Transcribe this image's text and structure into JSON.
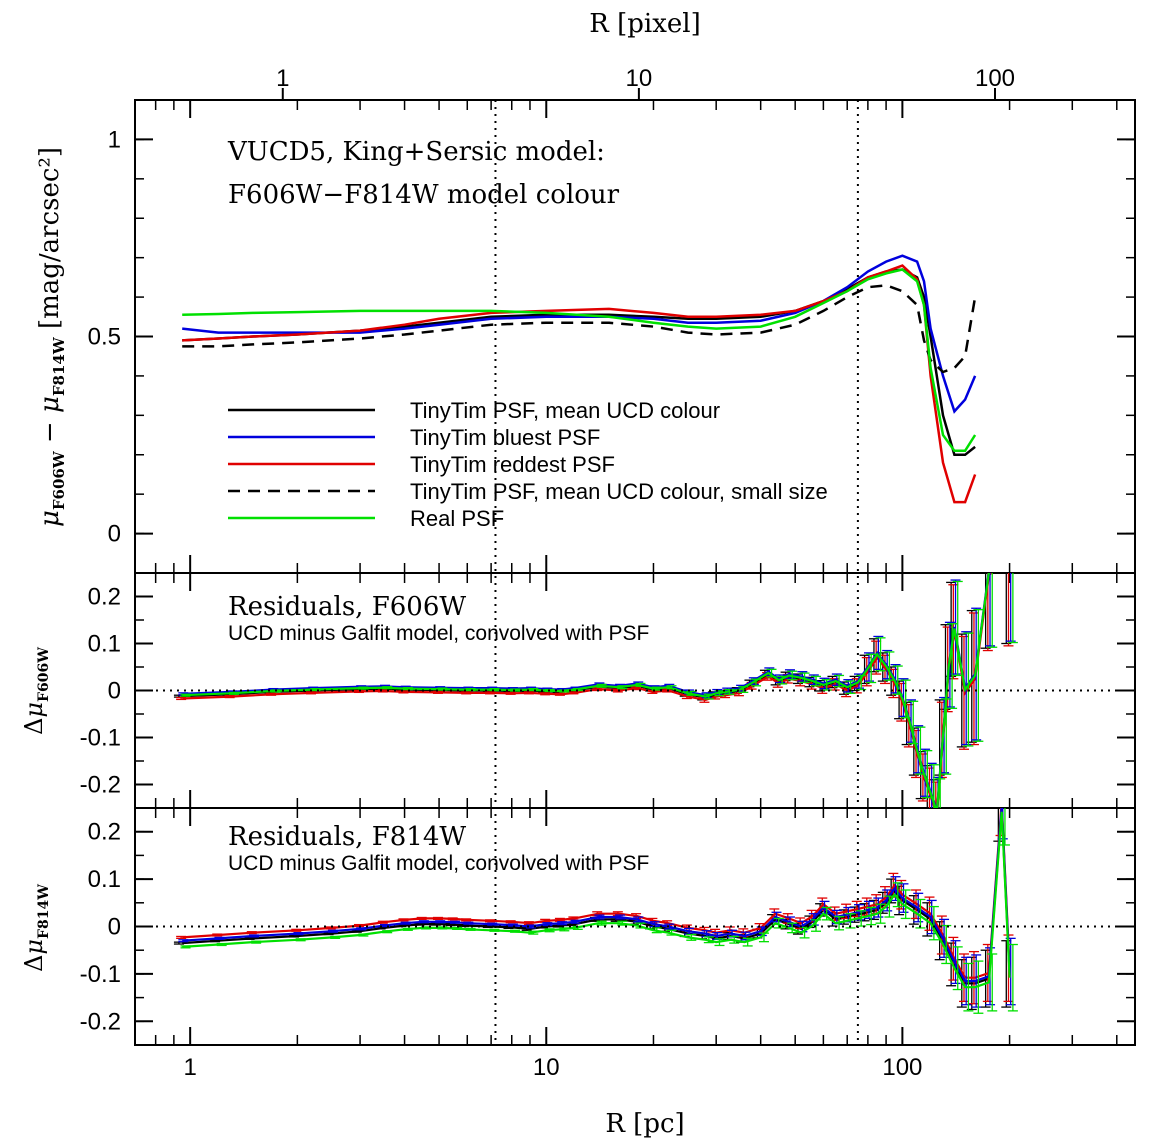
{
  "chart_data": {
    "type": "line",
    "x_scale": "log",
    "x_range": [
      0.7,
      450
    ],
    "top_axis": {
      "label": "R [pixel]",
      "tick_labels": [
        "1",
        "10",
        "100"
      ],
      "tick_values_pc": [
        1.82,
        18.2,
        182
      ]
    },
    "bottom_axis": {
      "label": "R [pc]",
      "tick_labels": [
        "1",
        "10",
        "100"
      ],
      "tick_values": [
        1,
        10,
        100
      ]
    },
    "vertical_dotted_lines": [
      7.2,
      75
    ],
    "panels": [
      {
        "id": "colour",
        "title_lines": [
          "VUCD5, King+Sersic model:",
          "F606W−F814W model colour"
        ],
        "ylabel": "μF606W − μF814W [mag/arcsec²]",
        "ylim": [
          -0.1,
          1.1
        ],
        "y_ticks": [
          0,
          0.5,
          1
        ],
        "y_tick_labels": [
          "0",
          "0.5",
          "1"
        ],
        "legend": [
          "TinyTim PSF, mean UCD colour",
          "TinyTim bluest PSF",
          "TinyTim reddest PSF",
          "TinyTim PSF, mean UCD colour, small size",
          "Real PSF"
        ],
        "series": [
          {
            "name": "TinyTim PSF, mean UCD colour",
            "color": "#000000",
            "dash": "",
            "x": [
              0.95,
              1.2,
              1.5,
              2,
              3,
              4,
              5,
              7,
              10,
              15,
              20,
              25,
              30,
              40,
              50,
              60,
              70,
              80,
              90,
              100,
              110,
              115,
              120,
              130,
              140,
              150,
              160
            ],
            "y": [
              0.49,
              0.495,
              0.5,
              0.505,
              0.515,
              0.525,
              0.535,
              0.55,
              0.555,
              0.555,
              0.55,
              0.545,
              0.545,
              0.55,
              0.565,
              0.59,
              0.62,
              0.65,
              0.665,
              0.67,
              0.65,
              0.6,
              0.5,
              0.3,
              0.2,
              0.2,
              0.22
            ]
          },
          {
            "name": "TinyTim bluest PSF",
            "color": "#0000dd",
            "dash": "",
            "x": [
              0.95,
              1.2,
              1.5,
              2,
              3,
              4,
              5,
              7,
              10,
              15,
              20,
              25,
              30,
              40,
              50,
              60,
              70,
              80,
              90,
              100,
              110,
              115,
              120,
              130,
              140,
              150,
              160
            ],
            "y": [
              0.52,
              0.51,
              0.51,
              0.51,
              0.51,
              0.52,
              0.53,
              0.545,
              0.55,
              0.55,
              0.545,
              0.535,
              0.535,
              0.54,
              0.56,
              0.59,
              0.625,
              0.665,
              0.69,
              0.705,
              0.69,
              0.64,
              0.52,
              0.4,
              0.31,
              0.34,
              0.4
            ]
          },
          {
            "name": "TinyTim reddest PSF",
            "color": "#e00000",
            "dash": "",
            "x": [
              0.95,
              1.2,
              1.5,
              2,
              3,
              4,
              5,
              7,
              10,
              15,
              20,
              25,
              30,
              40,
              50,
              60,
              70,
              80,
              90,
              100,
              110,
              115,
              120,
              130,
              140,
              150,
              160
            ],
            "y": [
              0.49,
              0.495,
              0.5,
              0.505,
              0.515,
              0.53,
              0.545,
              0.56,
              0.565,
              0.57,
              0.56,
              0.55,
              0.55,
              0.555,
              0.565,
              0.59,
              0.615,
              0.65,
              0.665,
              0.68,
              0.645,
              0.58,
              0.4,
              0.18,
              0.08,
              0.08,
              0.15
            ]
          },
          {
            "name": "TinyTim PSF, mean UCD colour, small size",
            "color": "#000000",
            "dash": "12,8",
            "x": [
              0.95,
              1.2,
              1.5,
              2,
              3,
              4,
              5,
              7,
              10,
              15,
              20,
              25,
              30,
              40,
              50,
              60,
              70,
              80,
              90,
              100,
              110,
              115,
              120,
              130,
              140,
              150,
              160
            ],
            "y": [
              0.475,
              0.475,
              0.48,
              0.485,
              0.495,
              0.505,
              0.515,
              0.53,
              0.535,
              0.535,
              0.525,
              0.51,
              0.505,
              0.51,
              0.53,
              0.565,
              0.6,
              0.625,
              0.63,
              0.615,
              0.58,
              0.49,
              0.44,
              0.41,
              0.42,
              0.45,
              0.6
            ]
          },
          {
            "name": "Real PSF",
            "color": "#00e000",
            "dash": "",
            "x": [
              0.95,
              1.2,
              1.5,
              2,
              3,
              4,
              5,
              7,
              10,
              15,
              20,
              25,
              30,
              40,
              50,
              60,
              70,
              80,
              90,
              100,
              110,
              115,
              120,
              130,
              140,
              150,
              160
            ],
            "y": [
              0.555,
              0.557,
              0.56,
              0.562,
              0.565,
              0.565,
              0.565,
              0.565,
              0.56,
              0.55,
              0.535,
              0.525,
              0.52,
              0.525,
              0.55,
              0.585,
              0.615,
              0.645,
              0.66,
              0.67,
              0.64,
              0.58,
              0.42,
              0.25,
              0.21,
              0.21,
              0.25
            ]
          }
        ]
      },
      {
        "id": "res606",
        "title": "Residuals, F606W",
        "subtitle": "UCD minus Galfit model, convolved with PSF",
        "ylabel": "ΔμF606W",
        "ylim": [
          -0.25,
          0.25
        ],
        "y_ticks": [
          -0.2,
          -0.1,
          0,
          0.1,
          0.2
        ],
        "y_tick_labels": [
          "-0.2",
          "-0.1",
          "0",
          "0.1",
          "0.2"
        ],
        "x": [
          0.95,
          1.3,
          1.7,
          2.2,
          3,
          3.5,
          4,
          5,
          6,
          7,
          8,
          9,
          10,
          11,
          12,
          14,
          16,
          18,
          20,
          22,
          25,
          28,
          30,
          32,
          35,
          38,
          42,
          45,
          48,
          52,
          56,
          60,
          65,
          70,
          75,
          80,
          85,
          90,
          95,
          100,
          105,
          110,
          115,
          120,
          125,
          130,
          135,
          140,
          150,
          160,
          175,
          200
        ],
        "y": [
          -0.012,
          -0.008,
          -0.003,
          0,
          0.003,
          0.004,
          0.002,
          0.001,
          0,
          0,
          -0.001,
          0,
          -0.002,
          -0.003,
          0,
          0.008,
          0.005,
          0.01,
          0.002,
          0.005,
          -0.008,
          -0.015,
          -0.008,
          -0.005,
          0,
          0.015,
          0.035,
          0.02,
          0.03,
          0.025,
          0.018,
          0.01,
          0.018,
          0.005,
          0.015,
          0.045,
          0.075,
          0.05,
          0.02,
          -0.02,
          -0.07,
          -0.13,
          -0.18,
          -0.22,
          -0.26,
          -0.1,
          0.05,
          0.13,
          0.0,
          0.03,
          0.25,
          0.3
        ],
        "err": [
          0.002,
          0.002,
          0.002,
          0.002,
          0.002,
          0.002,
          0.002,
          0.002,
          0.002,
          0.002,
          0.002,
          0.002,
          0.002,
          0.002,
          0.002,
          0.003,
          0.003,
          0.003,
          0.003,
          0.003,
          0.004,
          0.005,
          0.005,
          0.005,
          0.006,
          0.007,
          0.008,
          0.008,
          0.009,
          0.01,
          0.01,
          0.011,
          0.012,
          0.013,
          0.015,
          0.03,
          0.035,
          0.03,
          0.03,
          0.04,
          0.045,
          0.05,
          0.05,
          0.06,
          0.07,
          0.08,
          0.09,
          0.1,
          0.12,
          0.14,
          0.16,
          0.2
        ],
        "offsets": {
          "TinyTim PSF, mean UCD colour": 0.0,
          "TinyTim bluest PSF": 0.005,
          "TinyTim reddest PSF": -0.005,
          "Real PSF": 0.002
        }
      },
      {
        "id": "res814",
        "title": "Residuals, F814W",
        "subtitle": "UCD minus Galfit model, convolved with PSF",
        "ylabel": "ΔμF814W",
        "ylim": [
          -0.25,
          0.25
        ],
        "y_ticks": [
          -0.2,
          -0.1,
          0,
          0.1,
          0.2
        ],
        "y_tick_labels": [
          "-0.2",
          "-0.1",
          "0",
          "0.1",
          "0.2"
        ],
        "x": [
          0.95,
          1.2,
          1.5,
          2,
          2.5,
          3,
          3.5,
          4,
          4.5,
          5,
          5.5,
          6,
          7,
          8,
          9,
          10,
          11,
          12,
          14,
          16,
          18,
          20,
          22,
          25,
          28,
          30,
          33,
          36,
          40,
          44,
          48,
          52,
          56,
          60,
          65,
          70,
          75,
          80,
          85,
          90,
          95,
          100,
          110,
          120,
          130,
          140,
          150,
          160,
          175,
          190,
          200
        ],
        "y": [
          -0.035,
          -0.03,
          -0.025,
          -0.02,
          -0.015,
          -0.01,
          -0.003,
          0.002,
          0.005,
          0.005,
          0.004,
          0.002,
          0,
          -0.002,
          -0.005,
          0,
          0.002,
          0.005,
          0.015,
          0.015,
          0.01,
          0,
          -0.005,
          -0.015,
          -0.02,
          -0.025,
          -0.02,
          -0.025,
          -0.015,
          0.015,
          0.005,
          -0.005,
          0.01,
          0.035,
          0.015,
          0.02,
          0.025,
          0.03,
          0.035,
          0.05,
          0.075,
          0.055,
          0.035,
          0.015,
          -0.03,
          -0.08,
          -0.12,
          -0.12,
          -0.11,
          0.25,
          -0.1
        ],
        "err": [
          0.002,
          0.002,
          0.002,
          0.002,
          0.002,
          0.002,
          0.002,
          0.002,
          0.002,
          0.002,
          0.002,
          0.002,
          0.002,
          0.002,
          0.003,
          0.003,
          0.003,
          0.003,
          0.004,
          0.004,
          0.005,
          0.005,
          0.005,
          0.006,
          0.006,
          0.007,
          0.007,
          0.008,
          0.009,
          0.01,
          0.01,
          0.011,
          0.012,
          0.013,
          0.014,
          0.015,
          0.016,
          0.018,
          0.02,
          0.022,
          0.025,
          0.03,
          0.03,
          0.035,
          0.04,
          0.045,
          0.05,
          0.055,
          0.06,
          0.07,
          0.07
        ],
        "offsets": {
          "TinyTim PSF, mean UCD colour": 0.0,
          "TinyTim bluest PSF": 0.005,
          "TinyTim reddest PSF": 0.012,
          "Real PSF": -0.008
        }
      }
    ]
  }
}
